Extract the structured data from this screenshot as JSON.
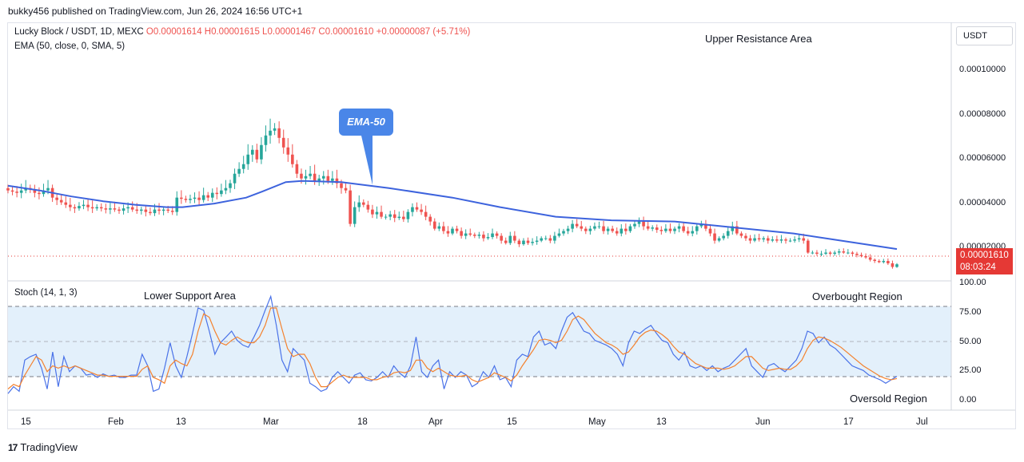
{
  "header": {
    "published": "bukky456 published on TradingView.com, Jun 26, 2024 16:56 UTC+1"
  },
  "legend": {
    "symbol": "Lucky Block / USDT, 1D, MEXC",
    "ohlc": "O0.00001614 H0.00001615 L0.00001467 C0.00001610 +0.00000087 (+5.71%)",
    "ema": "EMA (50, close, 0, SMA, 5)",
    "stoch": "Stoch (14, 1, 3)"
  },
  "annotations": {
    "upper_resistance": "Upper Resistance Area",
    "lower_support": "Lower Support Area",
    "overbought": "Overbought Region",
    "oversold": "Oversold Region",
    "ema_callout": "EMA-50"
  },
  "price_axis": {
    "currency": "USDT",
    "ticks": [
      "0.00010000",
      "0.00008000",
      "0.00006000",
      "0.00004000",
      "0.00002000"
    ],
    "current_price": "0.00001610",
    "countdown": "08:03:24"
  },
  "stoch_axis": {
    "ticks": [
      "100.00",
      "75.00",
      "50.00",
      "25.00",
      "0.00"
    ]
  },
  "time_axis": {
    "labels": [
      "15",
      "Feb",
      "13",
      "Mar",
      "18",
      "Apr",
      "15",
      "May",
      "13",
      "Jun",
      "17",
      "Jul"
    ]
  },
  "footer": {
    "brand": "TradingView"
  },
  "colors": {
    "up": "#26a69a",
    "down": "#ef5350",
    "ema": "#3d63dd",
    "stoch_k": "#4a72e8",
    "stoch_d": "#f4812d",
    "band": "#e3f0fb"
  },
  "chart_data": {
    "type": "candlestick",
    "title": "Lucky Block / USDT, 1D, MEXC",
    "ylim": [
      1.05e-05,
      0.000115
    ],
    "closes": [
      4.7e-05,
      4.65e-05,
      4.6e-05,
      4.7e-05,
      4.8e-05,
      4.75e-05,
      4.6e-05,
      4.55e-05,
      4.7e-05,
      4.8e-05,
      4.4e-05,
      4.3e-05,
      4.2e-05,
      4.1e-05,
      4e-05,
      3.95e-05,
      4.05e-05,
      4.1e-05,
      4e-05,
      3.95e-05,
      4e-05,
      3.95e-05,
      3.9e-05,
      3.95e-05,
      3.9e-05,
      3.85e-05,
      3.95e-05,
      4e-05,
      3.9e-05,
      3.85e-05,
      3.9e-05,
      3.8e-05,
      3.75e-05,
      3.9e-05,
      3.85e-05,
      3.9e-05,
      3.85e-05,
      3.8e-05,
      4.4e-05,
      4.35e-05,
      4.3e-05,
      4.35e-05,
      4.4e-05,
      4.3e-05,
      4.5e-05,
      4.4e-05,
      4.6e-05,
      4.55e-05,
      4.7e-05,
      4.8e-05,
      5e-05,
      5.4e-05,
      5.6e-05,
      5.8e-05,
      6.2e-05,
      6.4e-05,
      6e-05,
      6.6e-05,
      7e-05,
      7.2e-05,
      7.3e-05,
      6.9e-05,
      6.5e-05,
      6.2e-05,
      5.8e-05,
      5.4e-05,
      5.2e-05,
      5.3e-05,
      5.4e-05,
      5.1e-05,
      5.2e-05,
      5.3e-05,
      5.1e-05,
      5.2e-05,
      5e-05,
      4.8e-05,
      4.7e-05,
      3.3e-05,
      4e-05,
      4.2e-05,
      4.1e-05,
      3.9e-05,
      3.7e-05,
      3.8e-05,
      3.6e-05,
      3.6e-05,
      3.7e-05,
      3.55e-05,
      3.6e-05,
      3.5e-05,
      3.8e-05,
      4e-05,
      3.9e-05,
      3.8e-05,
      3.6e-05,
      3.4e-05,
      3.1e-05,
      3.2e-05,
      3e-05,
      2.9e-05,
      3.1e-05,
      3e-05,
      2.8e-05,
      2.9e-05,
      2.85e-05,
      2.8e-05,
      2.85e-05,
      2.7e-05,
      2.75e-05,
      2.9e-05,
      2.8e-05,
      2.6e-05,
      2.5e-05,
      2.8e-05,
      2.6e-05,
      2.45e-05,
      2.6e-05,
      2.5e-05,
      2.55e-05,
      2.6e-05,
      2.7e-05,
      2.7e-05,
      2.6e-05,
      2.8e-05,
      2.9e-05,
      3e-05,
      3.1e-05,
      3.3e-05,
      3.2e-05,
      3.1e-05,
      3e-05,
      3.1e-05,
      3.2e-05,
      3.2e-05,
      3e-05,
      3.1e-05,
      3e-05,
      2.9e-05,
      3.1e-05,
      3e-05,
      3.2e-05,
      3.3e-05,
      3.4e-05,
      3.2e-05,
      3.1e-05,
      3.15e-05,
      3.05e-05,
      3e-05,
      3.1e-05,
      3e-05,
      3.1e-05,
      3.2e-05,
      3e-05,
      2.9e-05,
      3e-05,
      3.2e-05,
      3.3e-05,
      3.1e-05,
      2.9e-05,
      2.6e-05,
      2.7e-05,
      2.8e-05,
      3e-05,
      3.2e-05,
      2.9e-05,
      2.8e-05,
      2.7e-05,
      2.6e-05,
      2.7e-05,
      2.65e-05,
      2.7e-05,
      2.6e-05,
      2.65e-05,
      2.6e-05,
      2.65e-05,
      2.6e-05,
      2.6e-05,
      2.65e-05,
      2.7e-05,
      2.6e-05,
      2.1e-05,
      2.1e-05,
      2.05e-05,
      2.05e-05,
      2.1e-05,
      2.05e-05,
      2.1e-05,
      2.15e-05,
      2.1e-05,
      2.1e-05,
      2.05e-05,
      2e-05,
      1.95e-05,
      1.9e-05,
      1.8e-05,
      1.75e-05,
      1.7e-05,
      1.75e-05,
      1.65e-05,
      1.5e-05,
      1.61e-05
    ],
    "ema50": [
      [
        0,
        4.9e-05
      ],
      [
        40,
        4.7e-05
      ],
      [
        80,
        4.45e-05
      ],
      [
        120,
        4.25e-05
      ],
      [
        160,
        4.1e-05
      ],
      [
        200,
        4e-05
      ],
      [
        220,
        4e-05
      ],
      [
        260,
        4.15e-05
      ],
      [
        300,
        4.4e-05
      ],
      [
        320,
        4.65e-05
      ],
      [
        350,
        5.05e-05
      ],
      [
        370,
        5.1e-05
      ],
      [
        420,
        5.05e-05
      ],
      [
        480,
        4.8e-05
      ],
      [
        560,
        4.4e-05
      ],
      [
        620,
        4e-05
      ],
      [
        690,
        3.6e-05
      ],
      [
        760,
        3.45e-05
      ],
      [
        840,
        3.4e-05
      ],
      [
        900,
        3.2e-05
      ],
      [
        990,
        2.9e-05
      ],
      [
        1050,
        2.6e-05
      ],
      [
        1120,
        2.25e-05
      ]
    ],
    "stoch": {
      "k": [
        6,
        12,
        8,
        35,
        38,
        40,
        28,
        10,
        42,
        12,
        38,
        25,
        30,
        28,
        22,
        23,
        20,
        23,
        21,
        22,
        20,
        20,
        22,
        22,
        40,
        30,
        8,
        10,
        28,
        50,
        30,
        20,
        38,
        58,
        80,
        78,
        60,
        40,
        50,
        55,
        60,
        52,
        48,
        46,
        55,
        65,
        78,
        90,
        65,
        35,
        25,
        45,
        40,
        35,
        15,
        12,
        8,
        10,
        20,
        25,
        20,
        15,
        22,
        24,
        18,
        17,
        20,
        25,
        20,
        30,
        24,
        20,
        30,
        55,
        25,
        20,
        30,
        35,
        10,
        25,
        20,
        25,
        22,
        12,
        15,
        25,
        20,
        30,
        18,
        20,
        12,
        35,
        40,
        38,
        55,
        60,
        48,
        50,
        45,
        60,
        72,
        76,
        68,
        60,
        58,
        52,
        50,
        48,
        45,
        40,
        30,
        50,
        60,
        58,
        62,
        65,
        58,
        52,
        50,
        40,
        35,
        42,
        30,
        28,
        30,
        26,
        30,
        25,
        28,
        30,
        35,
        40,
        45,
        30,
        25,
        20,
        30,
        32,
        28,
        25,
        30,
        35,
        45,
        60,
        58,
        50,
        55,
        48,
        45,
        40,
        35,
        30,
        28,
        26,
        22,
        20,
        18,
        15,
        18,
        21
      ],
      "d": [
        10,
        14,
        12,
        22,
        30,
        38,
        35,
        25,
        30,
        28,
        30,
        28,
        30,
        28,
        26,
        24,
        22,
        22,
        21,
        21,
        21,
        21,
        21,
        21,
        27,
        30,
        20,
        18,
        15,
        30,
        35,
        32,
        30,
        40,
        60,
        75,
        72,
        60,
        50,
        48,
        52,
        55,
        52,
        50,
        50,
        55,
        65,
        80,
        80,
        62,
        45,
        38,
        40,
        40,
        32,
        20,
        12,
        12,
        16,
        20,
        22,
        20,
        20,
        20,
        20,
        18,
        18,
        20,
        21,
        24,
        25,
        24,
        26,
        35,
        35,
        28,
        25,
        28,
        25,
        22,
        21,
        21,
        22,
        18,
        16,
        18,
        20,
        24,
        22,
        20,
        17,
        22,
        30,
        37,
        44,
        52,
        53,
        52,
        50,
        52,
        60,
        70,
        73,
        70,
        64,
        58,
        54,
        50,
        48,
        45,
        40,
        42,
        48,
        55,
        59,
        61,
        60,
        57,
        53,
        47,
        42,
        40,
        36,
        32,
        30,
        28,
        28,
        28,
        27,
        28,
        30,
        34,
        38,
        38,
        33,
        28,
        26,
        27,
        28,
        27,
        27,
        30,
        35,
        45,
        52,
        55,
        54,
        52,
        49,
        46,
        42,
        38,
        34,
        30,
        27,
        24,
        21,
        19,
        18,
        19
      ]
    }
  }
}
